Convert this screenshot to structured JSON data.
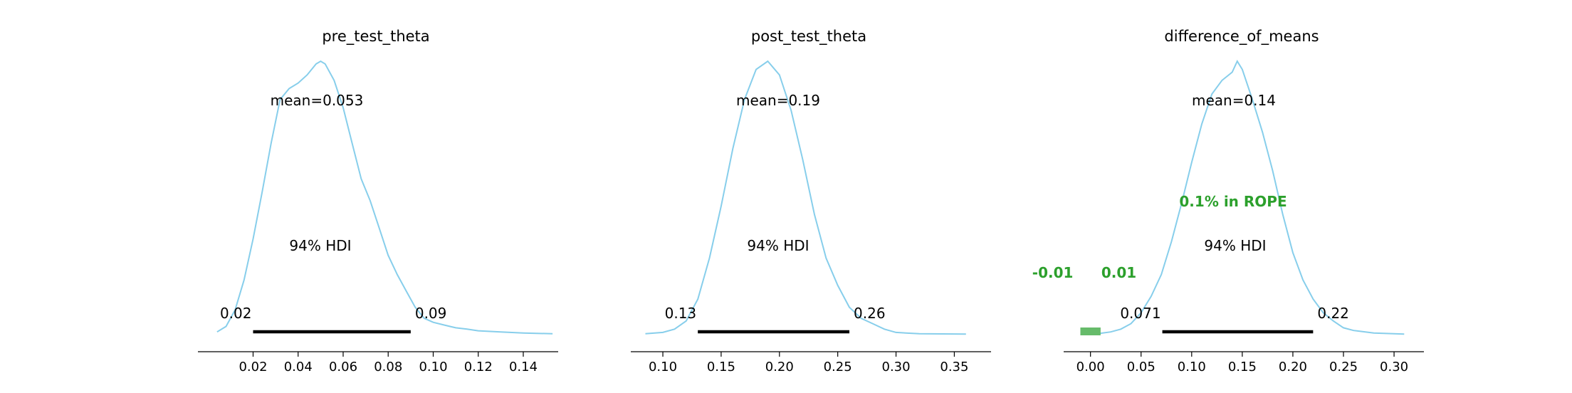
{
  "chart_data": [
    {
      "type": "density",
      "title": "pre_test_theta",
      "mean_label": "mean=0.053",
      "hdi_label": "94% HDI",
      "hdi": [
        0.02,
        0.09
      ],
      "hdi_low_label": "0.02",
      "hdi_high_label": "0.09",
      "xlim": [
        -0.0045,
        0.1555
      ],
      "xticks": [
        0.02,
        0.04,
        0.06,
        0.08,
        0.1,
        0.12,
        0.14
      ],
      "xtick_labels": [
        "0.02",
        "0.04",
        "0.06",
        "0.08",
        "0.10",
        "0.12",
        "0.14]"
      ],
      "curve": [
        [
          0.004,
          0.01
        ],
        [
          0.008,
          0.03
        ],
        [
          0.012,
          0.09
        ],
        [
          0.016,
          0.2
        ],
        [
          0.02,
          0.35
        ],
        [
          0.024,
          0.52
        ],
        [
          0.028,
          0.7
        ],
        [
          0.032,
          0.86
        ],
        [
          0.036,
          0.9
        ],
        [
          0.04,
          0.92
        ],
        [
          0.044,
          0.95
        ],
        [
          0.048,
          0.99
        ],
        [
          0.05,
          1.0
        ],
        [
          0.052,
          0.99
        ],
        [
          0.056,
          0.93
        ],
        [
          0.06,
          0.83
        ],
        [
          0.064,
          0.7
        ],
        [
          0.068,
          0.57
        ],
        [
          0.072,
          0.49
        ],
        [
          0.076,
          0.39
        ],
        [
          0.08,
          0.29
        ],
        [
          0.084,
          0.22
        ],
        [
          0.088,
          0.16
        ],
        [
          0.092,
          0.1
        ],
        [
          0.096,
          0.06
        ],
        [
          0.1,
          0.045
        ],
        [
          0.105,
          0.035
        ],
        [
          0.11,
          0.025
        ],
        [
          0.115,
          0.02
        ],
        [
          0.12,
          0.014
        ],
        [
          0.13,
          0.01
        ],
        [
          0.14,
          0.006
        ],
        [
          0.153,
          0.003
        ]
      ],
      "color": "#87ceeb"
    },
    {
      "type": "density",
      "title": "post_test_theta",
      "mean_label": "mean=0.19",
      "hdi_label": "94% HDI",
      "hdi": [
        0.13,
        0.26
      ],
      "hdi_low_label": "0.13",
      "hdi_high_label": "0.26",
      "xlim": [
        0.0725,
        0.3815
      ],
      "xticks": [
        0.1,
        0.15,
        0.2,
        0.25,
        0.3,
        0.35
      ],
      "xtick_labels": [
        "0.10",
        "0.15",
        "0.20",
        "0.25",
        "0.30",
        "0.35"
      ],
      "curve": [
        [
          0.085,
          0.003
        ],
        [
          0.1,
          0.008
        ],
        [
          0.11,
          0.02
        ],
        [
          0.12,
          0.05
        ],
        [
          0.13,
          0.13
        ],
        [
          0.14,
          0.28
        ],
        [
          0.15,
          0.47
        ],
        [
          0.16,
          0.68
        ],
        [
          0.17,
          0.86
        ],
        [
          0.18,
          0.97
        ],
        [
          0.19,
          1.0
        ],
        [
          0.2,
          0.95
        ],
        [
          0.21,
          0.82
        ],
        [
          0.22,
          0.64
        ],
        [
          0.23,
          0.44
        ],
        [
          0.24,
          0.28
        ],
        [
          0.25,
          0.18
        ],
        [
          0.26,
          0.1
        ],
        [
          0.27,
          0.06
        ],
        [
          0.28,
          0.04
        ],
        [
          0.29,
          0.02
        ],
        [
          0.3,
          0.008
        ],
        [
          0.32,
          0.003
        ],
        [
          0.36,
          0.002
        ]
      ],
      "color": "#87ceeb"
    },
    {
      "type": "density",
      "title": "difference_of_means",
      "mean_label": "mean=0.14",
      "hdi_label": "94% HDI",
      "hdi": [
        0.071,
        0.22
      ],
      "hdi_low_label": "0.071",
      "hdi_high_label": "0.22",
      "rope": [
        -0.01,
        0.01
      ],
      "rope_low_label": "-0.01",
      "rope_high_label": "0.01",
      "rope_label": "0.1% in ROPE",
      "rope_color": "#2ca02c",
      "xlim": [
        -0.0265,
        0.3295
      ],
      "xticks": [
        0.0,
        0.05,
        0.1,
        0.15,
        0.2,
        0.25,
        0.3
      ],
      "xtick_labels": [
        "0.00",
        "0.05",
        "0.10",
        "0.15",
        "0.20",
        "0.25",
        "0.30"
      ],
      "curve": [
        [
          -0.01,
          0.002
        ],
        [
          0.0,
          0.003
        ],
        [
          0.01,
          0.005
        ],
        [
          0.02,
          0.01
        ],
        [
          0.03,
          0.02
        ],
        [
          0.04,
          0.04
        ],
        [
          0.05,
          0.08
        ],
        [
          0.06,
          0.14
        ],
        [
          0.07,
          0.22
        ],
        [
          0.08,
          0.34
        ],
        [
          0.09,
          0.48
        ],
        [
          0.1,
          0.63
        ],
        [
          0.11,
          0.77
        ],
        [
          0.12,
          0.88
        ],
        [
          0.13,
          0.93
        ],
        [
          0.14,
          0.96
        ],
        [
          0.145,
          1.0
        ],
        [
          0.15,
          0.97
        ],
        [
          0.16,
          0.86
        ],
        [
          0.17,
          0.74
        ],
        [
          0.18,
          0.6
        ],
        [
          0.19,
          0.44
        ],
        [
          0.2,
          0.3
        ],
        [
          0.21,
          0.2
        ],
        [
          0.22,
          0.13
        ],
        [
          0.23,
          0.08
        ],
        [
          0.24,
          0.05
        ],
        [
          0.25,
          0.025
        ],
        [
          0.26,
          0.015
        ],
        [
          0.28,
          0.006
        ],
        [
          0.3,
          0.003
        ],
        [
          0.31,
          0.002
        ]
      ],
      "color": "#87ceeb"
    }
  ]
}
